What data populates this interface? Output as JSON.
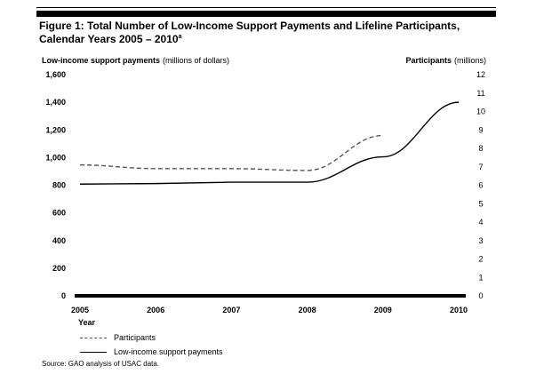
{
  "figure": {
    "title": "Figure 1: Total Number of Low-Income Support Payments and Lifeline Participants, Calendar Years 2005 – 2010",
    "title_footnote": "a",
    "source": "Source: GAO analysis of USAC data."
  },
  "chart_data": {
    "type": "line",
    "x": [
      2005,
      2006,
      2007,
      2008,
      2009,
      2010
    ],
    "xlabel": "Year",
    "y_left": {
      "label_bold": "Low-income support payments",
      "label_units": "(millions of dollars)",
      "range": [
        0,
        1600
      ],
      "ticks": [
        "0",
        "200",
        "400",
        "600",
        "800",
        "1,000",
        "1,200",
        "1,400",
        "1,600"
      ]
    },
    "y_right": {
      "label_bold": "Participants",
      "label_units": "(millions)",
      "range": [
        0,
        12
      ],
      "ticks": [
        "0",
        "1",
        "2",
        "3",
        "4",
        "5",
        "6",
        "7",
        "8",
        "9",
        "10",
        "11",
        "12"
      ]
    },
    "series": [
      {
        "name": "Participants",
        "axis": "right",
        "style": "dashed",
        "color": "#555555",
        "x": [
          2005,
          2006,
          2007,
          2008,
          2009
        ],
        "values": [
          7.1,
          6.9,
          6.9,
          6.8,
          8.7
        ]
      },
      {
        "name": "Low-income support payments",
        "axis": "left",
        "style": "solid",
        "color": "#000000",
        "x": [
          2005,
          2006,
          2007,
          2008,
          2009,
          2010
        ],
        "values": [
          808,
          812,
          822,
          822,
          1005,
          1400
        ]
      }
    ],
    "grid": false,
    "legend_position": "bottom-left"
  }
}
